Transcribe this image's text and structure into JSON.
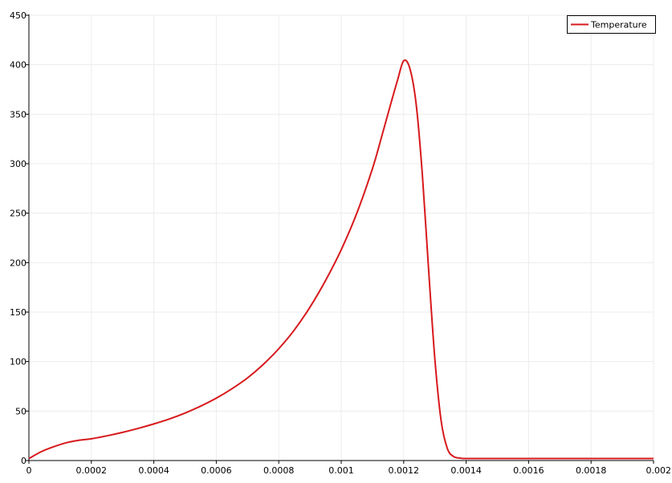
{
  "chart_data": {
    "type": "line",
    "title": "",
    "xlabel": "",
    "ylabel": "",
    "xlim": [
      0,
      0.002
    ],
    "ylim": [
      0,
      450
    ],
    "grid": true,
    "legend_position": "top-right",
    "x_ticks": [
      {
        "value": 0,
        "label": "0"
      },
      {
        "value": 0.0002,
        "label": "0.0002"
      },
      {
        "value": 0.0004,
        "label": "0.0004"
      },
      {
        "value": 0.0006,
        "label": "0.0006"
      },
      {
        "value": 0.0008,
        "label": "0.0008"
      },
      {
        "value": 0.001,
        "label": "0.001"
      },
      {
        "value": 0.0012,
        "label": "0.0012"
      },
      {
        "value": 0.0014,
        "label": "0.0014"
      },
      {
        "value": 0.0016,
        "label": "0.0016"
      },
      {
        "value": 0.0018,
        "label": "0.0018"
      },
      {
        "value": 0.002,
        "label": "0.002"
      }
    ],
    "y_ticks": [
      {
        "value": 0,
        "label": "0"
      },
      {
        "value": 50,
        "label": "50"
      },
      {
        "value": 100,
        "label": "100"
      },
      {
        "value": 150,
        "label": "150"
      },
      {
        "value": 200,
        "label": "200"
      },
      {
        "value": 250,
        "label": "250"
      },
      {
        "value": 300,
        "label": "300"
      },
      {
        "value": 350,
        "label": "350"
      },
      {
        "value": 400,
        "label": "400"
      },
      {
        "value": 450,
        "label": "450"
      }
    ],
    "series": [
      {
        "name": "Temperature",
        "color": "#d7191c",
        "x": [
          0,
          4e-05,
          8e-05,
          0.00012,
          0.00016,
          0.0002,
          0.00025,
          0.0003,
          0.00035,
          0.0004,
          0.00045,
          0.0005,
          0.00055,
          0.0006,
          0.00065,
          0.0007,
          0.00075,
          0.0008,
          0.00085,
          0.0009,
          0.00095,
          0.001,
          0.00105,
          0.0011,
          0.00113,
          0.00116,
          0.00118,
          0.0012,
          0.00122,
          0.00124,
          0.00126,
          0.00128,
          0.0013,
          0.00132,
          0.00134,
          0.00136,
          0.00138,
          0.0014,
          0.0015,
          0.0016,
          0.0017,
          0.0018,
          0.0019,
          0.002
        ],
        "y": [
          2,
          9,
          14,
          18,
          20.5,
          22,
          25,
          28.5,
          32.5,
          37,
          42,
          48,
          55,
          63,
          72.5,
          83.5,
          97,
          113,
          132,
          155,
          182,
          213,
          250,
          295,
          328,
          362,
          384,
          404,
          396,
          360,
          288,
          192,
          102,
          40,
          12,
          4,
          2.5,
          2,
          2,
          2,
          2,
          2,
          2,
          2
        ]
      }
    ]
  }
}
